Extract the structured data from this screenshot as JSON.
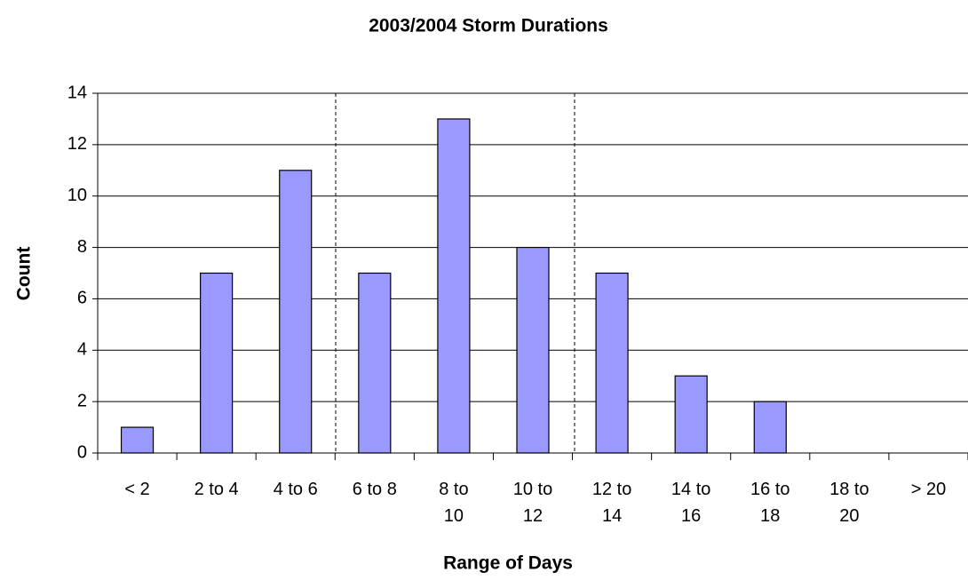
{
  "chart_data": {
    "type": "bar",
    "title": "2003/2004 Storm Durations",
    "x_label": "Range of Days",
    "y_label": "Count",
    "categories": [
      "< 2",
      "2 to 4",
      "4 to 6",
      "6 to 8",
      "8 to 10",
      "10 to 12",
      "12 to 14",
      "14 to 16",
      "16 to 18",
      "18 to 20",
      "> 20"
    ],
    "values": [
      1,
      7,
      11,
      7,
      13,
      8,
      7,
      3,
      2,
      0,
      0
    ],
    "color": "#9999ff",
    "ylim": [
      0,
      14
    ],
    "yticks": [
      0,
      2,
      4,
      6,
      8,
      10,
      12,
      14
    ],
    "grid": true
  }
}
